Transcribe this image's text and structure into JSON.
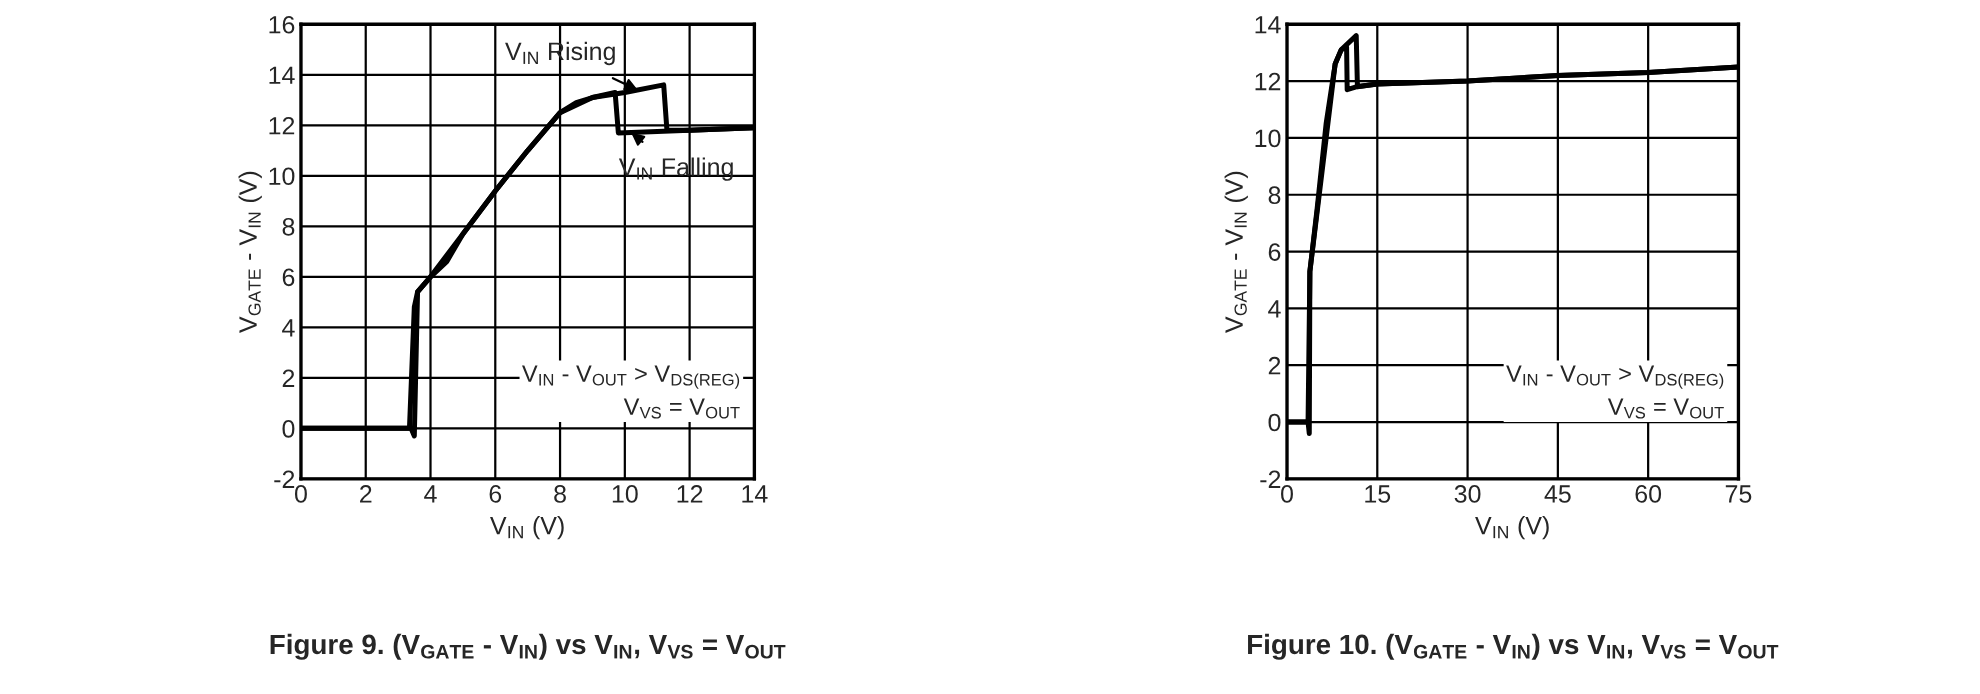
{
  "chart_data": [
    {
      "type": "line",
      "title": "Figure 9. (V$_{GATE}$ - V$_{IN}$) vs V$_{IN}$, V$_{VS}$ = V$_{OUT}$",
      "xlabel": "V$_{IN}$ (V)",
      "ylabel": "V$_{GATE}$ - V$_{IN}$ (V)",
      "xlim": [
        0,
        14
      ],
      "ylim": [
        -2,
        16
      ],
      "xticks": [
        0,
        2,
        4,
        6,
        8,
        10,
        12,
        14
      ],
      "yticks": [
        -2,
        0,
        2,
        4,
        6,
        8,
        10,
        12,
        14,
        16
      ],
      "grid": true,
      "line_style": "solid",
      "series": [
        {
          "color": "#000000",
          "x": [
            0,
            3.4,
            3.5,
            3.6,
            4.0,
            4.5,
            5.0,
            6.0,
            7.0,
            8.0,
            8.5,
            9.0,
            10.0,
            11.2,
            11.3,
            12.0,
            14.0
          ],
          "values": [
            0,
            0,
            -0.3,
            5.4,
            6.0,
            6.6,
            7.7,
            9.4,
            11.0,
            12.5,
            12.9,
            13.1,
            13.3,
            13.6,
            11.8,
            11.8,
            11.9
          ]
        },
        {
          "color": "#000000",
          "x": [
            14.0,
            12.0,
            9.8,
            9.7,
            9.0,
            8.0,
            7.0,
            6.0,
            5.0,
            4.0,
            3.6,
            3.5,
            3.35,
            0
          ],
          "values": [
            11.9,
            11.8,
            11.7,
            13.3,
            13.1,
            12.5,
            11.0,
            9.4,
            7.7,
            6.0,
            5.4,
            4.8,
            0,
            0
          ]
        }
      ],
      "annotations": [
        {
          "text": "V$_{IN}$ Rising",
          "x": 10.4,
          "y": 13.4
        },
        {
          "text": "V$_{IN}$ Falling",
          "x": 10.2,
          "y": 11.7
        },
        "V$_{IN}$ - V$_{OUT}$ > V$_{DS(REG)}$\nV$_{VS}$ = V$_{OUT}$"
      ]
    },
    {
      "type": "line",
      "title": "Figure 10. (V$_{GATE}$ - V$_{IN}$) vs V$_{IN}$, V$_{VS}$ = V$_{OUT}$",
      "xlabel": "V$_{IN}$ (V)",
      "ylabel": "V$_{GATE}$ - V$_{IN}$ (V)",
      "xlim": [
        0,
        75
      ],
      "ylim": [
        -2,
        14
      ],
      "xticks": [
        0,
        15,
        30,
        45,
        60,
        75
      ],
      "yticks": [
        -2,
        0,
        2,
        4,
        6,
        8,
        10,
        12,
        14
      ],
      "grid": true,
      "line_style": "solid",
      "series": [
        {
          "color": "#000000",
          "x": [
            0,
            3.5,
            3.7,
            3.8,
            5.0,
            6.5,
            8.0,
            9.0,
            10.0,
            11.5,
            11.7,
            15,
            30,
            45,
            60,
            75
          ],
          "values": [
            0,
            0,
            -0.4,
            5.3,
            7.5,
            10.5,
            12.6,
            13.1,
            13.3,
            13.6,
            11.8,
            11.9,
            12.0,
            12.2,
            12.3,
            12.5
          ]
        },
        {
          "color": "#000000",
          "x": [
            75,
            60,
            45,
            30,
            15,
            11.5,
            10.0,
            9.9,
            9.0,
            8.0,
            3.8,
            3.5,
            0
          ],
          "values": [
            12.5,
            12.3,
            12.2,
            12.0,
            11.9,
            11.8,
            11.7,
            13.2,
            13.1,
            12.6,
            5.3,
            0,
            0
          ]
        }
      ],
      "annotations": [
        "V$_{IN}$ - V$_{OUT}$ > V$_{DS(REG)}$\nV$_{VS}$ = V$_{OUT}$"
      ]
    }
  ]
}
